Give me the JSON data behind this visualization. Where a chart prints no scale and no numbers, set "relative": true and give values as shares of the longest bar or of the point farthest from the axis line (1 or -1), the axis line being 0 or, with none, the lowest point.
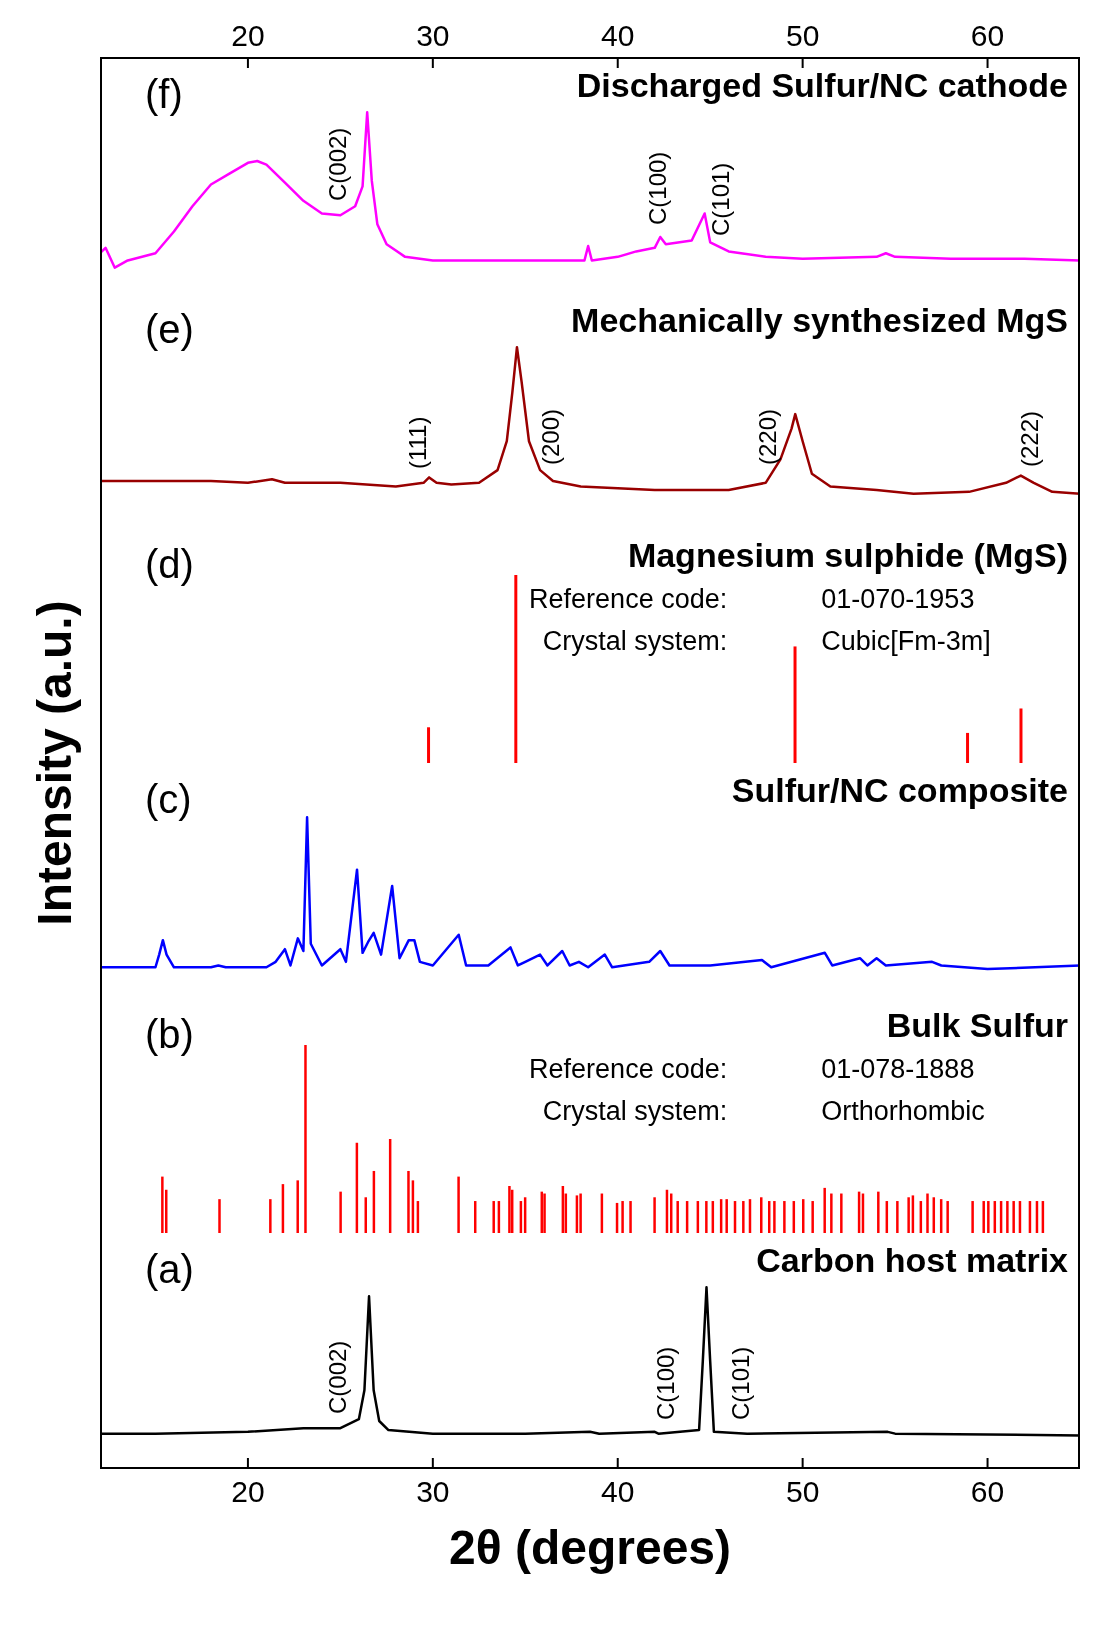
{
  "chart_data": [
    {
      "type": "line",
      "title": "Discharged Sulfur/NC cathode",
      "relative": true,
      "color": "#ff00ff",
      "xlim": [
        12,
        65
      ],
      "xticks": [
        20,
        30,
        40,
        50,
        60
      ],
      "x": [
        12,
        12.3,
        12.8,
        13.5,
        15,
        16,
        17,
        18,
        19,
        20,
        20.5,
        21,
        22,
        23,
        24,
        25,
        25.8,
        26.2,
        26.45,
        26.7,
        27,
        27.5,
        28.5,
        30,
        33,
        36,
        38.2,
        38.4,
        38.6,
        40,
        41,
        42,
        42.3,
        42.6,
        44,
        44.7,
        45,
        46,
        48,
        50,
        54,
        54.5,
        55,
        58,
        62,
        65
      ],
      "values": [
        0.22,
        0.25,
        0.14,
        0.18,
        0.22,
        0.34,
        0.48,
        0.6,
        0.66,
        0.72,
        0.73,
        0.71,
        0.61,
        0.51,
        0.44,
        0.43,
        0.48,
        0.59,
        1,
        0.62,
        0.38,
        0.27,
        0.2,
        0.18,
        0.18,
        0.18,
        0.18,
        0.26,
        0.18,
        0.2,
        0.23,
        0.25,
        0.31,
        0.27,
        0.29,
        0.44,
        0.28,
        0.23,
        0.2,
        0.19,
        0.2,
        0.22,
        0.2,
        0.19,
        0.19,
        0.18
      ],
      "annotations": [
        "(f)",
        {
          "text": "C(002)",
          "x": 24.85,
          "y": 0.43
        },
        {
          "text": "C(100)",
          "x": 42.2,
          "y": 0.3
        },
        {
          "text": "C(101)",
          "x": 45.6,
          "y": 0.24
        }
      ]
    },
    {
      "type": "line",
      "title": "Mechanically synthesized MgS",
      "relative": true,
      "color": "#990000",
      "xlim": [
        12,
        65
      ],
      "xticks": [
        20,
        30,
        40,
        50,
        60
      ],
      "tick_labels": false,
      "x": [
        12,
        15,
        18,
        20,
        21.3,
        22,
        25,
        28,
        29.5,
        29.8,
        30.2,
        31,
        32.5,
        33.5,
        34,
        34.3,
        34.55,
        34.8,
        35.2,
        35.8,
        36.5,
        38,
        42,
        46,
        48,
        48.8,
        49.4,
        49.6,
        50,
        50.5,
        51.5,
        54,
        56,
        59,
        61,
        61.8,
        62.5,
        63.5,
        65
      ],
      "values": [
        0.26,
        0.26,
        0.26,
        0.25,
        0.27,
        0.25,
        0.25,
        0.23,
        0.25,
        0.28,
        0.25,
        0.24,
        0.25,
        0.32,
        0.48,
        0.75,
        1,
        0.81,
        0.48,
        0.32,
        0.26,
        0.23,
        0.21,
        0.21,
        0.25,
        0.38,
        0.55,
        0.63,
        0.48,
        0.3,
        0.23,
        0.21,
        0.19,
        0.2,
        0.25,
        0.29,
        0.25,
        0.2,
        0.19
      ],
      "annotations": [
        "(e)",
        {
          "text": "(111)",
          "x": 29.2,
          "y": 0.25
        },
        {
          "text": "(200)",
          "x": 36.4,
          "y": 0.27
        },
        {
          "text": "(220)",
          "x": 48.1,
          "y": 0.27
        },
        {
          "text": "(222)",
          "x": 62.3,
          "y": 0.26
        }
      ]
    },
    {
      "type": "bar",
      "title": "Magnesium sulphide (MgS)",
      "ylabel": "Intensity (a.u.)",
      "relative": true,
      "color": "#ff0000",
      "xlim": [
        12,
        65
      ],
      "xticks": [
        20,
        30,
        40,
        50,
        60
      ],
      "tick_labels": false,
      "x": [
        29.78,
        34.5,
        49.6,
        58.93,
        61.82
      ],
      "values": [
        0.19,
        1,
        0.62,
        0.16,
        0.29
      ],
      "annotations": [
        "(d)",
        "Reference code:",
        "01-070-1953",
        "Crystal system:",
        "Cubic[Fm-3m]"
      ]
    },
    {
      "type": "line",
      "title": "Sulfur/NC composite",
      "relative": true,
      "color": "#0000ff",
      "xlim": [
        12,
        65
      ],
      "xticks": [
        20,
        30,
        40,
        50,
        60
      ],
      "tick_labels": false,
      "x": [
        12,
        15,
        15.2,
        15.4,
        15.6,
        16,
        18,
        18.4,
        18.8,
        21,
        21.5,
        22,
        22.3,
        22.7,
        23.0,
        23.2,
        23.4,
        24,
        25,
        25.3,
        25.9,
        26.2,
        26.5,
        26.8,
        27.2,
        27.8,
        28.2,
        28.7,
        29.0,
        29.3,
        30,
        31.4,
        31.8,
        33,
        34.2,
        34.6,
        35,
        35.8,
        36.2,
        37,
        37.4,
        37.9,
        38.4,
        39.3,
        39.7,
        41.7,
        42.3,
        42.8,
        45,
        47.8,
        48.3,
        51.2,
        51.6,
        53.1,
        53.5,
        54,
        54.5,
        57,
        57.5,
        60,
        65
      ],
      "values": [
        0.17,
        0.17,
        0.24,
        0.32,
        0.24,
        0.17,
        0.17,
        0.18,
        0.17,
        0.17,
        0.2,
        0.27,
        0.18,
        0.33,
        0.26,
        1,
        0.3,
        0.18,
        0.27,
        0.2,
        0.71,
        0.25,
        0.31,
        0.36,
        0.24,
        0.62,
        0.22,
        0.32,
        0.32,
        0.2,
        0.18,
        0.35,
        0.18,
        0.18,
        0.28,
        0.18,
        0.2,
        0.24,
        0.18,
        0.26,
        0.18,
        0.2,
        0.17,
        0.24,
        0.17,
        0.2,
        0.26,
        0.18,
        0.18,
        0.21,
        0.17,
        0.25,
        0.18,
        0.22,
        0.18,
        0.22,
        0.18,
        0.2,
        0.18,
        0.16,
        0.18
      ],
      "annotations": [
        "(c)"
      ]
    },
    {
      "type": "bar",
      "title": "Bulk Sulfur",
      "relative": true,
      "color": "#ff0000",
      "xlim": [
        12,
        65
      ],
      "xticks": [
        20,
        30,
        40,
        50,
        60
      ],
      "tick_labels": false,
      "x": [
        15.38,
        15.59,
        18.47,
        21.22,
        21.9,
        22.7,
        23.12,
        25.02,
        25.9,
        26.38,
        26.82,
        27.7,
        28.69,
        28.93,
        29.2,
        31.4,
        32.3,
        33.3,
        33.58,
        34.15,
        34.3,
        34.77,
        35.0,
        35.9,
        36.05,
        37.04,
        37.2,
        37.8,
        38.0,
        39.15,
        39.97,
        40.27,
        40.7,
        42.0,
        42.67,
        42.9,
        43.25,
        43.76,
        44.34,
        44.8,
        45.15,
        45.6,
        45.9,
        46.35,
        46.8,
        47.16,
        47.77,
        48.2,
        48.48,
        49.02,
        49.53,
        50.04,
        50.55,
        51.2,
        51.56,
        52.1,
        53.06,
        53.27,
        54.1,
        54.56,
        55.13,
        55.74,
        55.97,
        56.4,
        56.76,
        57.1,
        57.5,
        57.85,
        59.2,
        59.8,
        60.05,
        60.4,
        60.74,
        61.08,
        61.42,
        61.76,
        62.3,
        62.68,
        63.0
      ],
      "values": [
        0.3,
        0.23,
        0.18,
        0.18,
        0.26,
        0.28,
        1,
        0.22,
        0.48,
        0.19,
        0.33,
        0.5,
        0.33,
        0.28,
        0.17,
        0.3,
        0.17,
        0.17,
        0.17,
        0.25,
        0.23,
        0.17,
        0.19,
        0.22,
        0.21,
        0.25,
        0.21,
        0.2,
        0.21,
        0.21,
        0.16,
        0.17,
        0.17,
        0.19,
        0.23,
        0.21,
        0.17,
        0.17,
        0.17,
        0.17,
        0.17,
        0.18,
        0.18,
        0.17,
        0.17,
        0.18,
        0.19,
        0.17,
        0.17,
        0.17,
        0.17,
        0.18,
        0.17,
        0.24,
        0.21,
        0.21,
        0.22,
        0.21,
        0.22,
        0.17,
        0.17,
        0.19,
        0.2,
        0.17,
        0.21,
        0.19,
        0.18,
        0.17,
        0.17,
        0.17,
        0.17,
        0.17,
        0.17,
        0.17,
        0.17,
        0.17,
        0.17,
        0.17,
        0.17
      ],
      "annotations": [
        "(b)",
        "Reference code:",
        "01-078-1888",
        "Crystal system:",
        "Orthorhombic"
      ]
    },
    {
      "type": "line",
      "title": "Carbon host matrix",
      "xlabel": "2θ (degrees)",
      "relative": true,
      "color": "#000000",
      "xlim": [
        12,
        65
      ],
      "xticks": [
        20,
        30,
        40,
        50,
        60
      ],
      "x": [
        12,
        15,
        20,
        23,
        25,
        26,
        26.3,
        26.55,
        26.8,
        27.1,
        27.6,
        30,
        35,
        38.5,
        39,
        42,
        42.2,
        44.4,
        44.6,
        44.8,
        45.0,
        45.2,
        47,
        54.6,
        55,
        65
      ],
      "values": [
        0.19,
        0.19,
        0.2,
        0.22,
        0.22,
        0.27,
        0.43,
        0.95,
        0.43,
        0.26,
        0.21,
        0.19,
        0.19,
        0.2,
        0.19,
        0.2,
        0.19,
        0.21,
        0.59,
        1,
        0.59,
        0.2,
        0.19,
        0.2,
        0.19,
        0.18
      ],
      "annotations": [
        "(a)",
        {
          "text": "C(002)",
          "x": 24.85,
          "y": 0.22
        },
        {
          "text": "C(100)",
          "x": 42.6,
          "y": 0.19
        },
        {
          "text": "C(101)",
          "x": 46.65,
          "y": 0.19
        }
      ]
    }
  ]
}
